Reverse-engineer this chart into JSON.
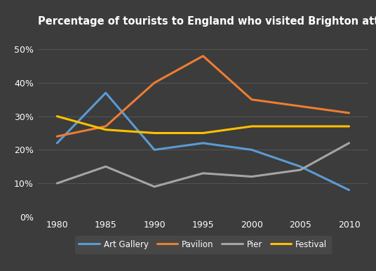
{
  "title": "Percentage of tourists to England who visited Brighton attractions",
  "years": [
    1980,
    1985,
    1990,
    1995,
    2000,
    2005,
    2010
  ],
  "series": {
    "Art Gallery": {
      "values": [
        22,
        37,
        20,
        22,
        20,
        15,
        8
      ],
      "color": "#5B9BD5",
      "marker": "none"
    },
    "Pavilion": {
      "values": [
        24,
        27,
        40,
        48,
        35,
        33,
        31
      ],
      "color": "#ED7D31",
      "marker": "none"
    },
    "Pier": {
      "values": [
        10,
        15,
        9,
        13,
        12,
        14,
        22
      ],
      "color": "#A5A5A5",
      "marker": "none"
    },
    "Festival": {
      "values": [
        30,
        26,
        25,
        25,
        27,
        27,
        27
      ],
      "color": "#FFC000",
      "marker": "none"
    }
  },
  "ylim": [
    0,
    55
  ],
  "yticks": [
    0,
    10,
    20,
    30,
    40,
    50
  ],
  "background_color": "#3C3C3C",
  "plot_bg_color": "#3C3C3C",
  "grid_color": "#555555",
  "text_color": "#ffffff",
  "legend_bg": "#4A4A4A",
  "linewidth": 2.2,
  "title_fontsize": 10.5,
  "tick_fontsize": 9,
  "legend_fontsize": 8.5,
  "xlim": [
    1978,
    2012
  ]
}
